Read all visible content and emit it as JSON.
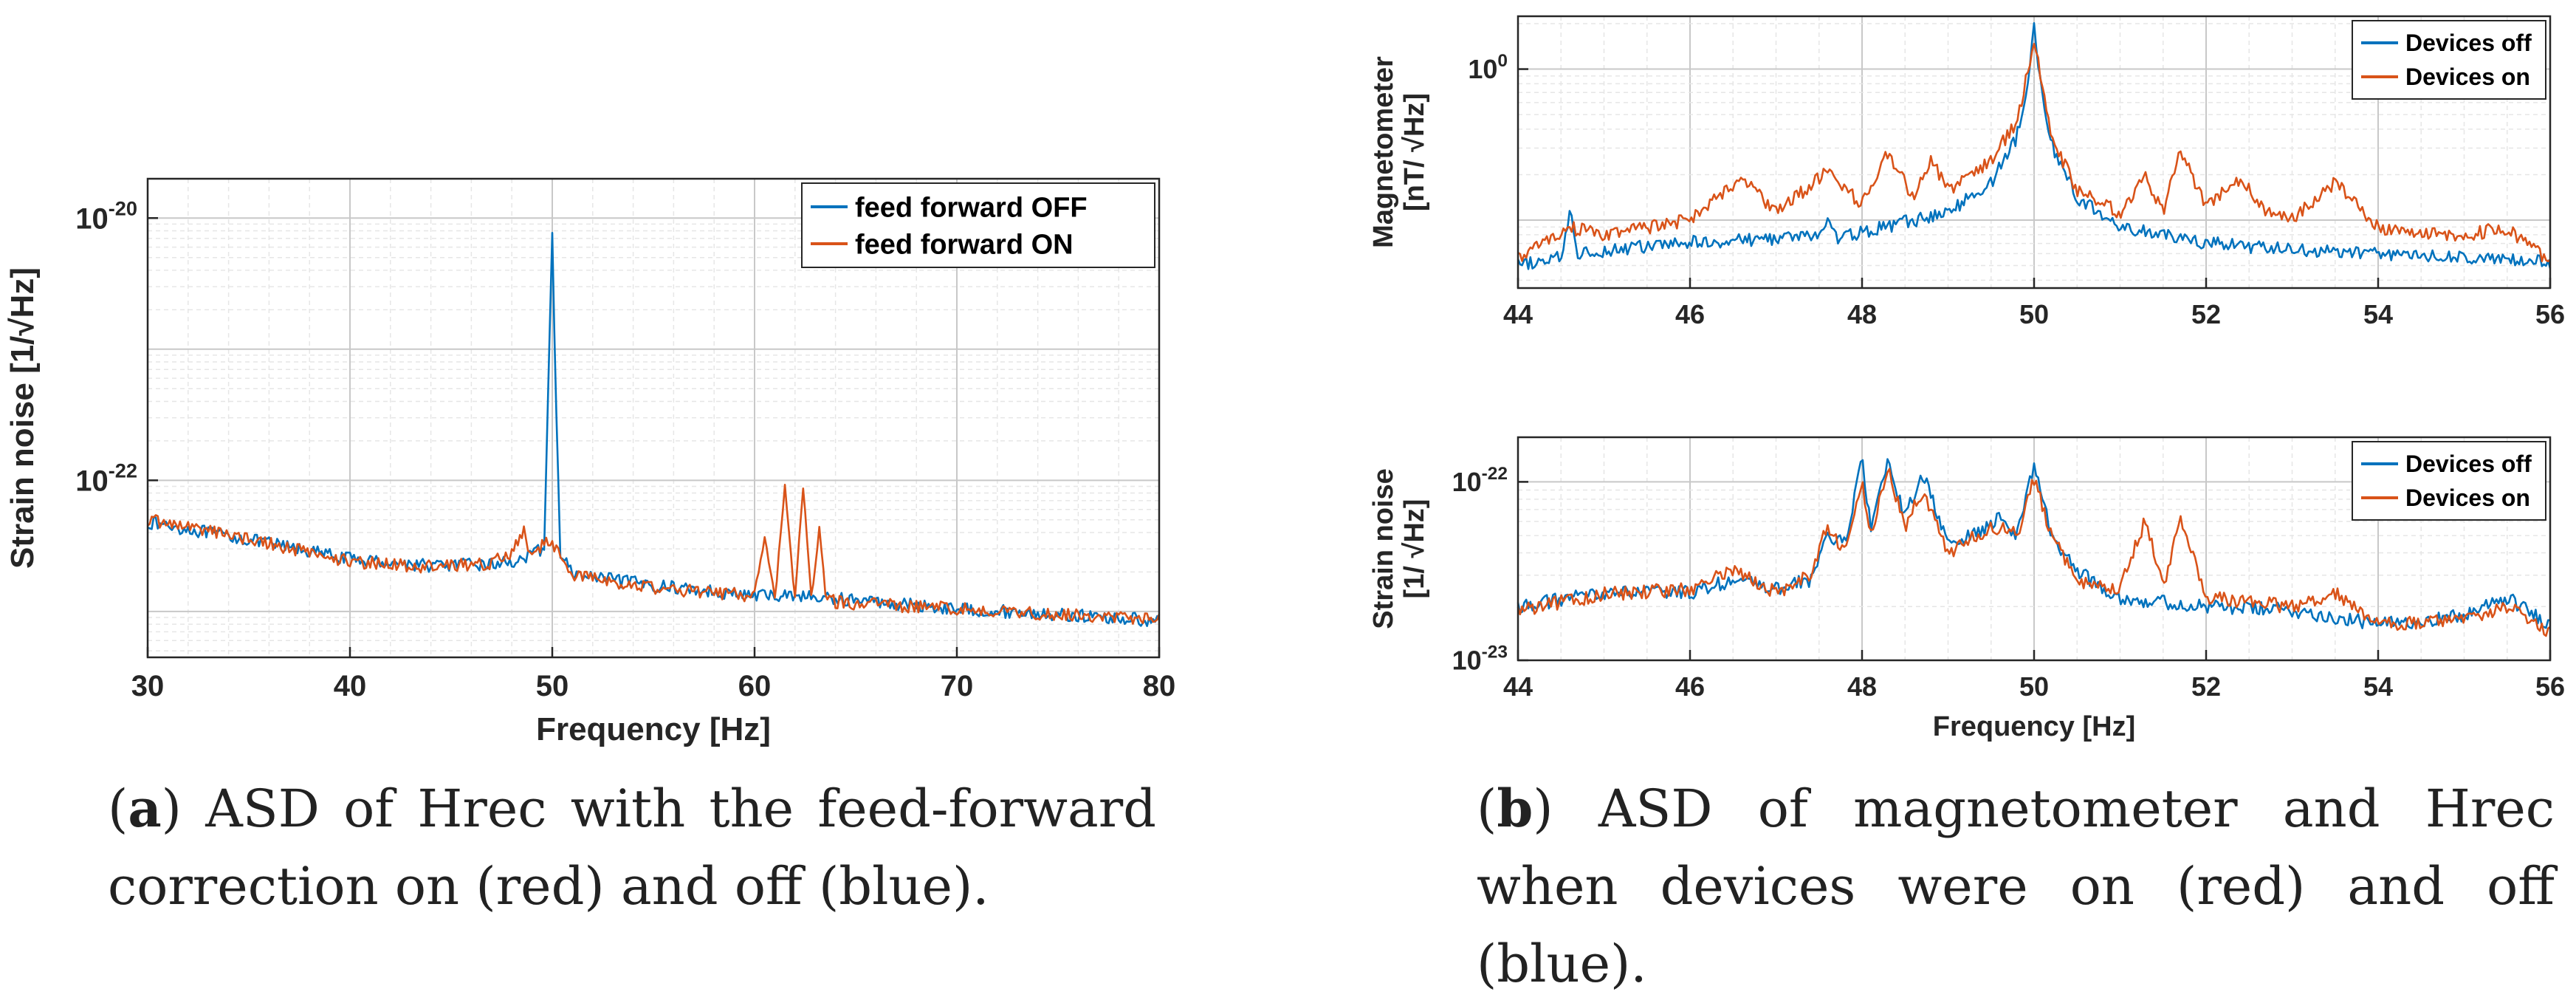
{
  "colors": {
    "blue": "#0072BD",
    "red": "#D95319",
    "grid": "#d9d9d9",
    "axis": "#262626"
  },
  "captions": {
    "a_label": "a",
    "a_text": " ASD of Hrec with the feed-forward correction on (red) and off (blue).",
    "b_label": "b",
    "b_text": " ASD of magnetometer and Hrec when devices were on (red) and off (blue)."
  },
  "chart_data": [
    {
      "id": "a",
      "type": "line",
      "xlabel": "Frequency [Hz]",
      "ylabel": "Strain noise [1/√Hz]",
      "xlim": [
        30,
        80
      ],
      "ylim_log10": [
        -23.35,
        -19.7
      ],
      "xticks": [
        30,
        40,
        50,
        60,
        70,
        80
      ],
      "xtick_labels": [
        "30",
        "40",
        "50",
        "60",
        "70",
        "80"
      ],
      "yticks_log10": [
        -22,
        -20
      ],
      "ytick_labels": [
        {
          "base": "10",
          "exp": "-22"
        },
        {
          "base": "10",
          "exp": "-20"
        }
      ],
      "grid": true,
      "legend": "top-right",
      "series": [
        {
          "name": "feed forward OFF",
          "color": "blue",
          "x": [
            30,
            33,
            36,
            40,
            44,
            47,
            48,
            49,
            49.6,
            49.85,
            50,
            50.15,
            50.4,
            51,
            55,
            60,
            61,
            62,
            63,
            64,
            70,
            80
          ],
          "log": [
            -22.32,
            -22.4,
            -22.48,
            -22.6,
            -22.65,
            -22.64,
            -22.62,
            -22.58,
            -22.5,
            -21.0,
            -20.12,
            -21.2,
            -22.55,
            -22.72,
            -22.8,
            -22.88,
            -22.88,
            -22.87,
            -22.9,
            -22.9,
            -22.98,
            -23.07
          ]
        },
        {
          "name": "feed forward ON",
          "color": "red",
          "x": [
            30,
            33,
            36,
            40,
            44,
            47,
            48,
            48.6,
            49,
            49.6,
            50,
            50.6,
            51,
            55,
            60,
            60.5,
            61,
            61.5,
            62,
            62.4,
            62.8,
            63.2,
            63.5,
            64,
            70,
            80
          ],
          "log": [
            -22.3,
            -22.38,
            -22.48,
            -22.62,
            -22.66,
            -22.63,
            -22.55,
            -22.4,
            -22.6,
            -22.48,
            -22.47,
            -22.62,
            -22.72,
            -22.82,
            -22.88,
            -22.45,
            -22.9,
            -22.05,
            -22.9,
            -22.03,
            -22.9,
            -22.35,
            -22.85,
            -22.93,
            -22.98,
            -23.06
          ]
        }
      ]
    },
    {
      "id": "b1",
      "type": "line",
      "xlabel": "",
      "ylabel": "Magnetometer",
      "ylabel2": "[nT/ √Hz]",
      "xlim": [
        44,
        56
      ],
      "ylim_log10": [
        -1.45,
        0.35
      ],
      "xticks": [
        44,
        46,
        48,
        50,
        52,
        54,
        56
      ],
      "xtick_labels": [
        "44",
        "46",
        "48",
        "50",
        "52",
        "54",
        "56"
      ],
      "yticks_log10": [
        0
      ],
      "ytick_labels": [
        {
          "base": "10",
          "exp": "0"
        }
      ],
      "grid": true,
      "legend": "top-right",
      "series": [
        {
          "name": "Devices off",
          "color": "blue",
          "x": [
            44,
            44.5,
            44.6,
            44.7,
            45,
            46,
            47,
            47.5,
            47.6,
            47.7,
            48,
            49,
            49.5,
            49.8,
            49.95,
            50,
            50.05,
            50.2,
            50.5,
            51,
            52,
            53,
            54,
            55,
            56
          ],
          "log": [
            -1.3,
            -1.25,
            -0.95,
            -1.22,
            -1.2,
            -1.15,
            -1.12,
            -1.1,
            -1.0,
            -1.12,
            -1.08,
            -0.95,
            -0.75,
            -0.45,
            0.0,
            0.28,
            0.0,
            -0.5,
            -0.85,
            -1.05,
            -1.15,
            -1.2,
            -1.22,
            -1.25,
            -1.28
          ]
        },
        {
          "name": "Devices on",
          "color": "red",
          "x": [
            44,
            44.6,
            45,
            46,
            46.6,
            47,
            47.6,
            48,
            48.3,
            48.6,
            48.8,
            49,
            49.5,
            49.8,
            49.95,
            50,
            50.05,
            50.2,
            50.5,
            51,
            51.3,
            51.5,
            51.7,
            52,
            52.4,
            52.7,
            53,
            53.5,
            54,
            55,
            55.5,
            56
          ],
          "log": [
            -1.25,
            -1.05,
            -1.1,
            -1.0,
            -0.72,
            -0.95,
            -0.68,
            -0.9,
            -0.55,
            -0.85,
            -0.6,
            -0.8,
            -0.6,
            -0.35,
            0.05,
            0.2,
            0.05,
            -0.45,
            -0.8,
            -0.95,
            -0.72,
            -0.95,
            -0.55,
            -0.9,
            -0.72,
            -0.95,
            -1.0,
            -0.75,
            -1.05,
            -1.1,
            -1.05,
            -1.28
          ]
        }
      ]
    },
    {
      "id": "b2",
      "type": "line",
      "xlabel": "Frequency [Hz]",
      "ylabel": "Strain noise",
      "ylabel2": "[1/ √Hz]",
      "xlim": [
        44,
        56
      ],
      "ylim_log10": [
        -23.0,
        -21.75
      ],
      "xticks": [
        44,
        46,
        48,
        50,
        52,
        54,
        56
      ],
      "xtick_labels": [
        "44",
        "46",
        "48",
        "50",
        "52",
        "54",
        "56"
      ],
      "yticks_log10": [
        -23,
        -22
      ],
      "ytick_labels": [
        {
          "base": "10",
          "exp": "-23"
        },
        {
          "base": "10",
          "exp": "-22"
        }
      ],
      "grid": true,
      "legend": "top-right",
      "series": [
        {
          "name": "Devices off",
          "color": "blue",
          "x": [
            44,
            45,
            46,
            46.5,
            47,
            47.4,
            47.6,
            47.8,
            48,
            48.1,
            48.3,
            48.5,
            48.7,
            49,
            49.3,
            49.6,
            49.8,
            50,
            50.2,
            50.5,
            51,
            52,
            53,
            54,
            55,
            55.5,
            56
          ],
          "log": [
            -22.7,
            -22.62,
            -22.62,
            -22.55,
            -22.6,
            -22.55,
            -22.3,
            -22.35,
            -21.88,
            -22.25,
            -21.9,
            -22.2,
            -21.95,
            -22.35,
            -22.3,
            -22.2,
            -22.3,
            -21.9,
            -22.3,
            -22.5,
            -22.65,
            -22.7,
            -22.72,
            -22.8,
            -22.75,
            -22.65,
            -22.8
          ]
        },
        {
          "name": "Devices on",
          "color": "red",
          "x": [
            44,
            45,
            46,
            46.5,
            47,
            47.4,
            47.6,
            47.8,
            48,
            48.1,
            48.3,
            48.5,
            48.7,
            49,
            49.3,
            49.6,
            49.8,
            50,
            50.2,
            50.5,
            51,
            51.3,
            51.5,
            51.7,
            52,
            53,
            53.5,
            54,
            55,
            55.5,
            56
          ],
          "log": [
            -22.72,
            -22.63,
            -22.6,
            -22.5,
            -22.62,
            -22.52,
            -22.25,
            -22.4,
            -22.0,
            -22.3,
            -21.92,
            -22.25,
            -22.05,
            -22.4,
            -22.3,
            -22.25,
            -22.3,
            -21.98,
            -22.3,
            -22.55,
            -22.6,
            -22.2,
            -22.6,
            -22.2,
            -22.65,
            -22.7,
            -22.62,
            -22.8,
            -22.78,
            -22.7,
            -22.85
          ]
        }
      ]
    }
  ]
}
